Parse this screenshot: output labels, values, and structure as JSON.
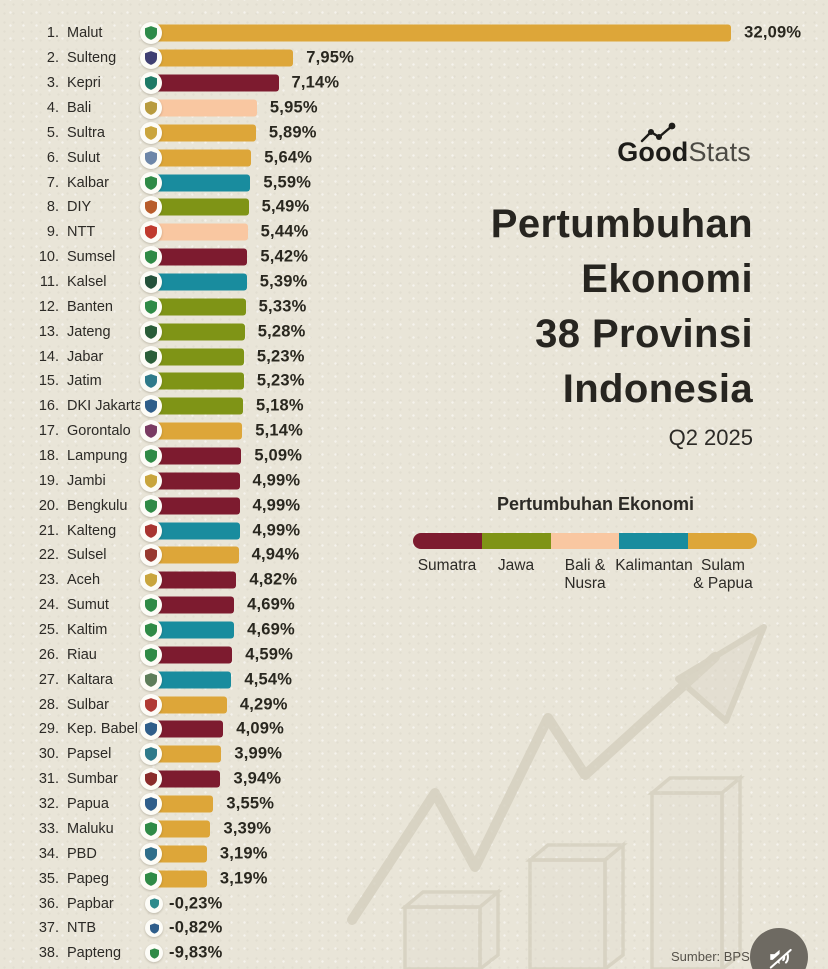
{
  "brand": {
    "bold": "Good",
    "light": "Stats",
    "icon": "line-chart-flourish-icon"
  },
  "title": {
    "lines": [
      "Pertumbuhan",
      "Ekonomi",
      "38 Provinsi",
      "Indonesia"
    ],
    "subtitle": "Q2 2025"
  },
  "legend": {
    "title": "Pertumbuhan Ekonomi",
    "items": [
      {
        "label": "Sumatra",
        "color": "#7d1b2f"
      },
      {
        "label": "Jawa",
        "color": "#7f9416"
      },
      {
        "label": "Bali &\nNusra",
        "color": "#f9c7a1"
      },
      {
        "label": "Kalimantan",
        "color": "#198c9e"
      },
      {
        "label": "Sulam\n& Papua",
        "color": "#dda639"
      }
    ]
  },
  "footer": {
    "source": "Sumber: BPS",
    "mute_icon": "volume-muted-icon"
  },
  "chart_data": {
    "type": "bar",
    "orientation": "horizontal",
    "title": "Pertumbuhan Ekonomi 38 Provinsi Indonesia",
    "period": "Q2 2025",
    "unit": "%",
    "value_range": [
      -9.83,
      32.09
    ],
    "region_colors": {
      "sumatra": "#7d1b2f",
      "jawa": "#7f9416",
      "balinusra": "#f9c7a1",
      "kalimantan": "#198c9e",
      "sulampapua": "#dda639"
    },
    "rows": [
      {
        "rank": 1,
        "label": "Malut",
        "value": 32.09,
        "value_display": "32,09%",
        "region": "sulampapua",
        "emblem_color": "#2e8b4a"
      },
      {
        "rank": 2,
        "label": "Sulteng",
        "value": 7.95,
        "value_display": "7,95%",
        "region": "sulampapua",
        "emblem_color": "#3f3f72"
      },
      {
        "rank": 3,
        "label": "Kepri",
        "value": 7.14,
        "value_display": "7,14%",
        "region": "sumatra",
        "emblem_color": "#1e7a66"
      },
      {
        "rank": 4,
        "label": "Bali",
        "value": 5.95,
        "value_display": "5,95%",
        "region": "balinusra",
        "emblem_color": "#b89b3e"
      },
      {
        "rank": 5,
        "label": "Sultra",
        "value": 5.89,
        "value_display": "5,89%",
        "region": "sulampapua",
        "emblem_color": "#caa53d"
      },
      {
        "rank": 6,
        "label": "Sulut",
        "value": 5.64,
        "value_display": "5,64%",
        "region": "sulampapua",
        "emblem_color": "#6d86a8"
      },
      {
        "rank": 7,
        "label": "Kalbar",
        "value": 5.59,
        "value_display": "5,59%",
        "region": "kalimantan",
        "emblem_color": "#2f8a46"
      },
      {
        "rank": 8,
        "label": "DIY",
        "value": 5.49,
        "value_display": "5,49%",
        "region": "jawa",
        "emblem_color": "#b85c2a"
      },
      {
        "rank": 9,
        "label": "NTT",
        "value": 5.44,
        "value_display": "5,44%",
        "region": "balinusra",
        "emblem_color": "#c03a2e"
      },
      {
        "rank": 10,
        "label": "Sumsel",
        "value": 5.42,
        "value_display": "5,42%",
        "region": "sumatra",
        "emblem_color": "#2f8a46"
      },
      {
        "rank": 11,
        "label": "Kalsel",
        "value": 5.39,
        "value_display": "5,39%",
        "region": "kalimantan",
        "emblem_color": "#24513a"
      },
      {
        "rank": 12,
        "label": "Banten",
        "value": 5.33,
        "value_display": "5,33%",
        "region": "jawa",
        "emblem_color": "#2f8a46"
      },
      {
        "rank": 13,
        "label": "Jateng",
        "value": 5.28,
        "value_display": "5,28%",
        "region": "jawa",
        "emblem_color": "#295c38"
      },
      {
        "rank": 14,
        "label": "Jabar",
        "value": 5.23,
        "value_display": "5,23%",
        "region": "jawa",
        "emblem_color": "#2b5e3a"
      },
      {
        "rank": 15,
        "label": "Jatim",
        "value": 5.23,
        "value_display": "5,23%",
        "region": "jawa",
        "emblem_color": "#2f7a8a"
      },
      {
        "rank": 16,
        "label": "DKI Jakarta",
        "value": 5.18,
        "value_display": "5,18%",
        "region": "jawa",
        "emblem_color": "#2f5e8a"
      },
      {
        "rank": 17,
        "label": "Gorontalo",
        "value": 5.14,
        "value_display": "5,14%",
        "region": "sulampapua",
        "emblem_color": "#7a3b62"
      },
      {
        "rank": 18,
        "label": "Lampung",
        "value": 5.09,
        "value_display": "5,09%",
        "region": "sumatra",
        "emblem_color": "#2f8a46"
      },
      {
        "rank": 19,
        "label": "Jambi",
        "value": 4.99,
        "value_display": "4,99%",
        "region": "sumatra",
        "emblem_color": "#c9a53d"
      },
      {
        "rank": 20,
        "label": "Bengkulu",
        "value": 4.99,
        "value_display": "4,99%",
        "region": "sumatra",
        "emblem_color": "#2f8a46"
      },
      {
        "rank": 21,
        "label": "Kalteng",
        "value": 4.99,
        "value_display": "4,99%",
        "region": "kalimantan",
        "emblem_color": "#a83430"
      },
      {
        "rank": 22,
        "label": "Sulsel",
        "value": 4.94,
        "value_display": "4,94%",
        "region": "sulampapua",
        "emblem_color": "#97392f"
      },
      {
        "rank": 23,
        "label": "Aceh",
        "value": 4.82,
        "value_display": "4,82%",
        "region": "sumatra",
        "emblem_color": "#c9a53d"
      },
      {
        "rank": 24,
        "label": "Sumut",
        "value": 4.69,
        "value_display": "4,69%",
        "region": "sumatra",
        "emblem_color": "#2f8a46"
      },
      {
        "rank": 25,
        "label": "Kaltim",
        "value": 4.69,
        "value_display": "4,69%",
        "region": "kalimantan",
        "emblem_color": "#2f8a46"
      },
      {
        "rank": 26,
        "label": "Riau",
        "value": 4.59,
        "value_display": "4,59%",
        "region": "sumatra",
        "emblem_color": "#2f8a46"
      },
      {
        "rank": 27,
        "label": "Kaltara",
        "value": 4.54,
        "value_display": "4,54%",
        "region": "kalimantan",
        "emblem_color": "#5d7d5a"
      },
      {
        "rank": 28,
        "label": "Sulbar",
        "value": 4.29,
        "value_display": "4,29%",
        "region": "sulampapua",
        "emblem_color": "#b03a34"
      },
      {
        "rank": 29,
        "label": "Kep. Babel",
        "value": 4.09,
        "value_display": "4,09%",
        "region": "sumatra",
        "emblem_color": "#2f5e8a"
      },
      {
        "rank": 30,
        "label": "Papsel",
        "value": 3.99,
        "value_display": "3,99%",
        "region": "sulampapua",
        "emblem_color": "#2f7a8a"
      },
      {
        "rank": 31,
        "label": "Sumbar",
        "value": 3.94,
        "value_display": "3,94%",
        "region": "sumatra",
        "emblem_color": "#8a2b2b"
      },
      {
        "rank": 32,
        "label": "Papua",
        "value": 3.55,
        "value_display": "3,55%",
        "region": "sulampapua",
        "emblem_color": "#2f5e8a"
      },
      {
        "rank": 33,
        "label": "Maluku",
        "value": 3.39,
        "value_display": "3,39%",
        "region": "sulampapua",
        "emblem_color": "#2f8a46"
      },
      {
        "rank": 34,
        "label": "PBD",
        "value": 3.19,
        "value_display": "3,19%",
        "region": "sulampapua",
        "emblem_color": "#2f6e8a"
      },
      {
        "rank": 35,
        "label": "Papeg",
        "value": 3.19,
        "value_display": "3,19%",
        "region": "sulampapua",
        "emblem_color": "#2f8a46"
      },
      {
        "rank": 36,
        "label": "Papbar",
        "value": -0.23,
        "value_display": "-0,23%",
        "region": "sulampapua",
        "emblem_color": "#2e8b8b"
      },
      {
        "rank": 37,
        "label": "NTB",
        "value": -0.82,
        "value_display": "-0,82%",
        "region": "balinusra",
        "emblem_color": "#2f5e8a"
      },
      {
        "rank": 38,
        "label": "Papteng",
        "value": -9.83,
        "value_display": "-9,83%",
        "region": "sulampapua",
        "emblem_color": "#2f8a46"
      }
    ]
  }
}
